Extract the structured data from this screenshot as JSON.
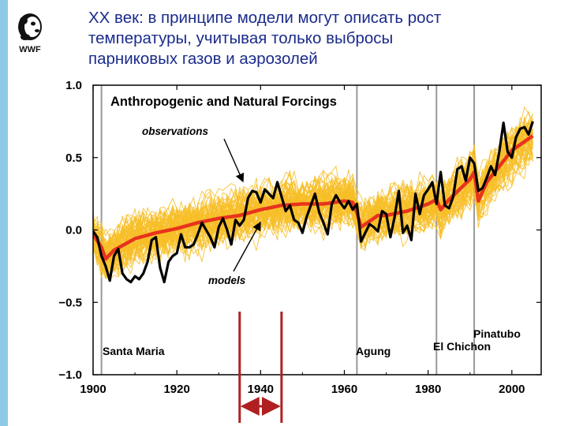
{
  "slide": {
    "title_lines": [
      "XX век: в принципе модели могут описать рост",
      "температуры, учитывая только выбросы",
      "парниковых газов и аэрозолей"
    ],
    "logo_text": "WWF"
  },
  "chart_data": {
    "type": "line",
    "title": "Anthropogenic and Natural Forcings",
    "xlabel": "",
    "ylabel": "",
    "xlim": [
      1900,
      2007
    ],
    "ylim": [
      -1.0,
      1.0
    ],
    "x_ticks": [
      1900,
      1920,
      1940,
      1960,
      1980,
      2000
    ],
    "x_tick_labels": [
      "1900",
      "1920",
      "1940",
      "1960",
      "1980",
      "2000"
    ],
    "y_ticks": [
      -1.0,
      -0.5,
      0.0,
      0.5,
      1.0
    ],
    "y_tick_labels": [
      "−1.0",
      "−0.5",
      "0.0",
      "0.5",
      "1.0"
    ],
    "colors": {
      "observations": "#000000",
      "model_mean": "#e8341c",
      "model_runs": "#f7be27",
      "volcano_line": "#999999",
      "arrow": "#b02020"
    },
    "annotations": {
      "observations": "observations",
      "models": "models"
    },
    "volcanoes": [
      {
        "name": "Santa Maria",
        "year": 1902
      },
      {
        "name": "Agung",
        "year": 1963
      },
      {
        "name": "El Chichon",
        "year": 1982
      },
      {
        "name": "Pinatubo",
        "year": 1991
      }
    ],
    "highlight_range": [
      1935,
      1945
    ],
    "series": [
      {
        "name": "observations",
        "x": [
          1900,
          1901,
          1902,
          1903,
          1904,
          1905,
          1906,
          1907,
          1908,
          1909,
          1910,
          1911,
          1912,
          1913,
          1914,
          1915,
          1916,
          1917,
          1918,
          1919,
          1920,
          1921,
          1922,
          1923,
          1924,
          1925,
          1926,
          1927,
          1928,
          1929,
          1930,
          1931,
          1932,
          1933,
          1934,
          1935,
          1936,
          1937,
          1938,
          1939,
          1940,
          1941,
          1942,
          1943,
          1944,
          1945,
          1946,
          1947,
          1948,
          1949,
          1950,
          1951,
          1952,
          1953,
          1954,
          1955,
          1956,
          1957,
          1958,
          1959,
          1960,
          1961,
          1962,
          1963,
          1964,
          1965,
          1966,
          1967,
          1968,
          1969,
          1970,
          1971,
          1972,
          1973,
          1974,
          1975,
          1976,
          1977,
          1978,
          1979,
          1980,
          1981,
          1982,
          1983,
          1984,
          1985,
          1986,
          1987,
          1988,
          1989,
          1990,
          1991,
          1992,
          1993,
          1994,
          1995,
          1996,
          1997,
          1998,
          1999,
          2000,
          2001,
          2002,
          2003,
          2004,
          2005
        ],
        "values": [
          -0.01,
          -0.05,
          -0.18,
          -0.25,
          -0.35,
          -0.18,
          -0.13,
          -0.3,
          -0.34,
          -0.36,
          -0.32,
          -0.34,
          -0.3,
          -0.22,
          -0.07,
          -0.05,
          -0.26,
          -0.36,
          -0.22,
          -0.18,
          -0.16,
          -0.03,
          -0.12,
          -0.12,
          -0.1,
          -0.03,
          0.05,
          0.0,
          -0.05,
          -0.12,
          0.02,
          0.08,
          0.0,
          -0.1,
          0.07,
          0.03,
          0.07,
          0.22,
          0.27,
          0.26,
          0.19,
          0.28,
          0.25,
          0.22,
          0.33,
          0.23,
          0.13,
          0.17,
          0.07,
          0.05,
          -0.02,
          0.09,
          0.17,
          0.25,
          0.12,
          0.05,
          -0.03,
          0.18,
          0.24,
          0.19,
          0.15,
          0.2,
          0.14,
          0.18,
          -0.08,
          -0.02,
          0.04,
          0.02,
          -0.01,
          0.13,
          0.11,
          -0.05,
          0.09,
          0.27,
          -0.02,
          0.03,
          -0.07,
          0.25,
          0.11,
          0.24,
          0.28,
          0.33,
          0.18,
          0.4,
          0.17,
          0.15,
          0.23,
          0.42,
          0.44,
          0.34,
          0.5,
          0.46,
          0.27,
          0.29,
          0.36,
          0.44,
          0.38,
          0.54,
          0.74,
          0.54,
          0.5,
          0.64,
          0.7,
          0.71,
          0.66,
          0.75
        ]
      },
      {
        "name": "model_mean",
        "x": [
          1900,
          1902,
          1903,
          1905,
          1910,
          1915,
          1920,
          1925,
          1930,
          1935,
          1940,
          1945,
          1950,
          1955,
          1960,
          1962,
          1963,
          1964,
          1966,
          1968,
          1970,
          1975,
          1980,
          1982,
          1983,
          1985,
          1990,
          1991,
          1992,
          1994,
          2000,
          2005
        ],
        "values": [
          -0.03,
          -0.12,
          -0.2,
          -0.14,
          -0.06,
          -0.02,
          0.01,
          0.05,
          0.08,
          0.1,
          0.14,
          0.17,
          0.18,
          0.18,
          0.2,
          0.19,
          0.12,
          0.02,
          0.06,
          0.1,
          0.1,
          0.13,
          0.18,
          0.21,
          0.14,
          0.21,
          0.35,
          0.4,
          0.2,
          0.33,
          0.55,
          0.65
        ]
      }
    ]
  }
}
